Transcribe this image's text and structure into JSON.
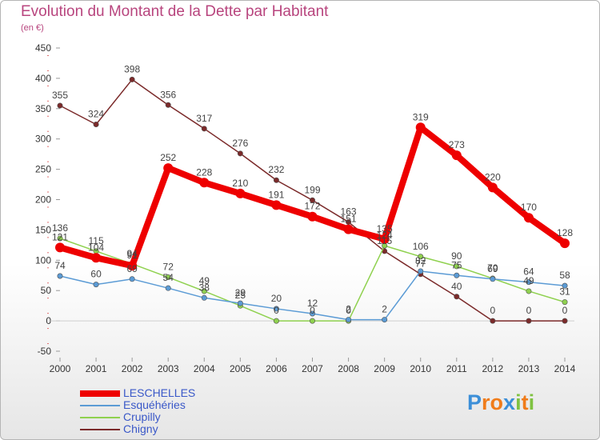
{
  "title": "Evolution du Montant de la Dette par Habitant",
  "unit_label": "(en €)",
  "brand": {
    "letters": [
      {
        "ch": "P",
        "color": "#3c8fd8"
      },
      {
        "ch": "r",
        "color": "#f07c1a"
      },
      {
        "ch": "o",
        "color": "#f07c1a"
      },
      {
        "ch": "x",
        "color": "#3c8fd8"
      },
      {
        "ch": "i",
        "color": "#7fc241"
      },
      {
        "ch": "t",
        "color": "#f07c1a"
      },
      {
        "ch": "i",
        "color": "#7fc241"
      }
    ]
  },
  "chart_data": {
    "type": "line",
    "title": "Evolution du Montant de la Dette par Habitant",
    "ylabel": "(en €)",
    "xlabel": "",
    "x": [
      "2000",
      "2001",
      "2002",
      "2003",
      "2004",
      "2005",
      "2006",
      "2007",
      "2008",
      "2009",
      "2010",
      "2011",
      "2012",
      "2013",
      "2014"
    ],
    "ylim": [
      -50,
      450
    ],
    "yticks": [
      "-50",
      "0",
      "50",
      "100",
      "150",
      "200",
      "250",
      "300",
      "350",
      "400",
      "450"
    ],
    "grid": "horizontal",
    "legend_position": "bottom-left",
    "series": [
      {
        "name": "LESCHELLES",
        "color": "#ee0000",
        "values": [
          121,
          104,
          91,
          252,
          228,
          210,
          191,
          172,
          151,
          135,
          319,
          273,
          220,
          170,
          128
        ],
        "labels": [
          "121",
          "104",
          "91",
          "252",
          "228",
          "210",
          "191",
          "172",
          "151",
          "135",
          "319",
          "273",
          "220",
          "170",
          "128"
        ]
      },
      {
        "name": "Esquéhéries",
        "color": "#5b9bd5",
        "values": [
          74,
          60,
          69,
          54,
          38,
          29,
          20,
          12,
          2,
          2,
          82,
          75,
          69,
          64,
          58
        ],
        "labels": [
          "74",
          "60",
          "69",
          "54",
          "38",
          "29",
          "20",
          "12",
          "2",
          "2",
          "82",
          "75",
          "69",
          "64",
          "58"
        ]
      },
      {
        "name": "Crupilly",
        "color": "#8fd14f",
        "values": [
          136,
          115,
          94,
          72,
          49,
          25,
          0,
          0,
          0,
          124,
          106,
          90,
          70,
          49,
          31
        ],
        "labels": [
          "136",
          "115",
          "94",
          "72",
          "49",
          "25",
          "0",
          "0",
          "0",
          "124",
          "106",
          "90",
          "70",
          "49",
          "31"
        ]
      },
      {
        "name": "Chigny",
        "color": "#7b2a2a",
        "values": [
          355,
          324,
          398,
          356,
          317,
          276,
          232,
          199,
          163,
          115,
          77,
          40,
          0,
          0,
          0
        ],
        "labels": [
          "355",
          "324",
          "398",
          "356",
          "317",
          "276",
          "232",
          "199",
          "163",
          "115",
          "77",
          "40",
          "0",
          "0",
          "0"
        ]
      }
    ]
  }
}
